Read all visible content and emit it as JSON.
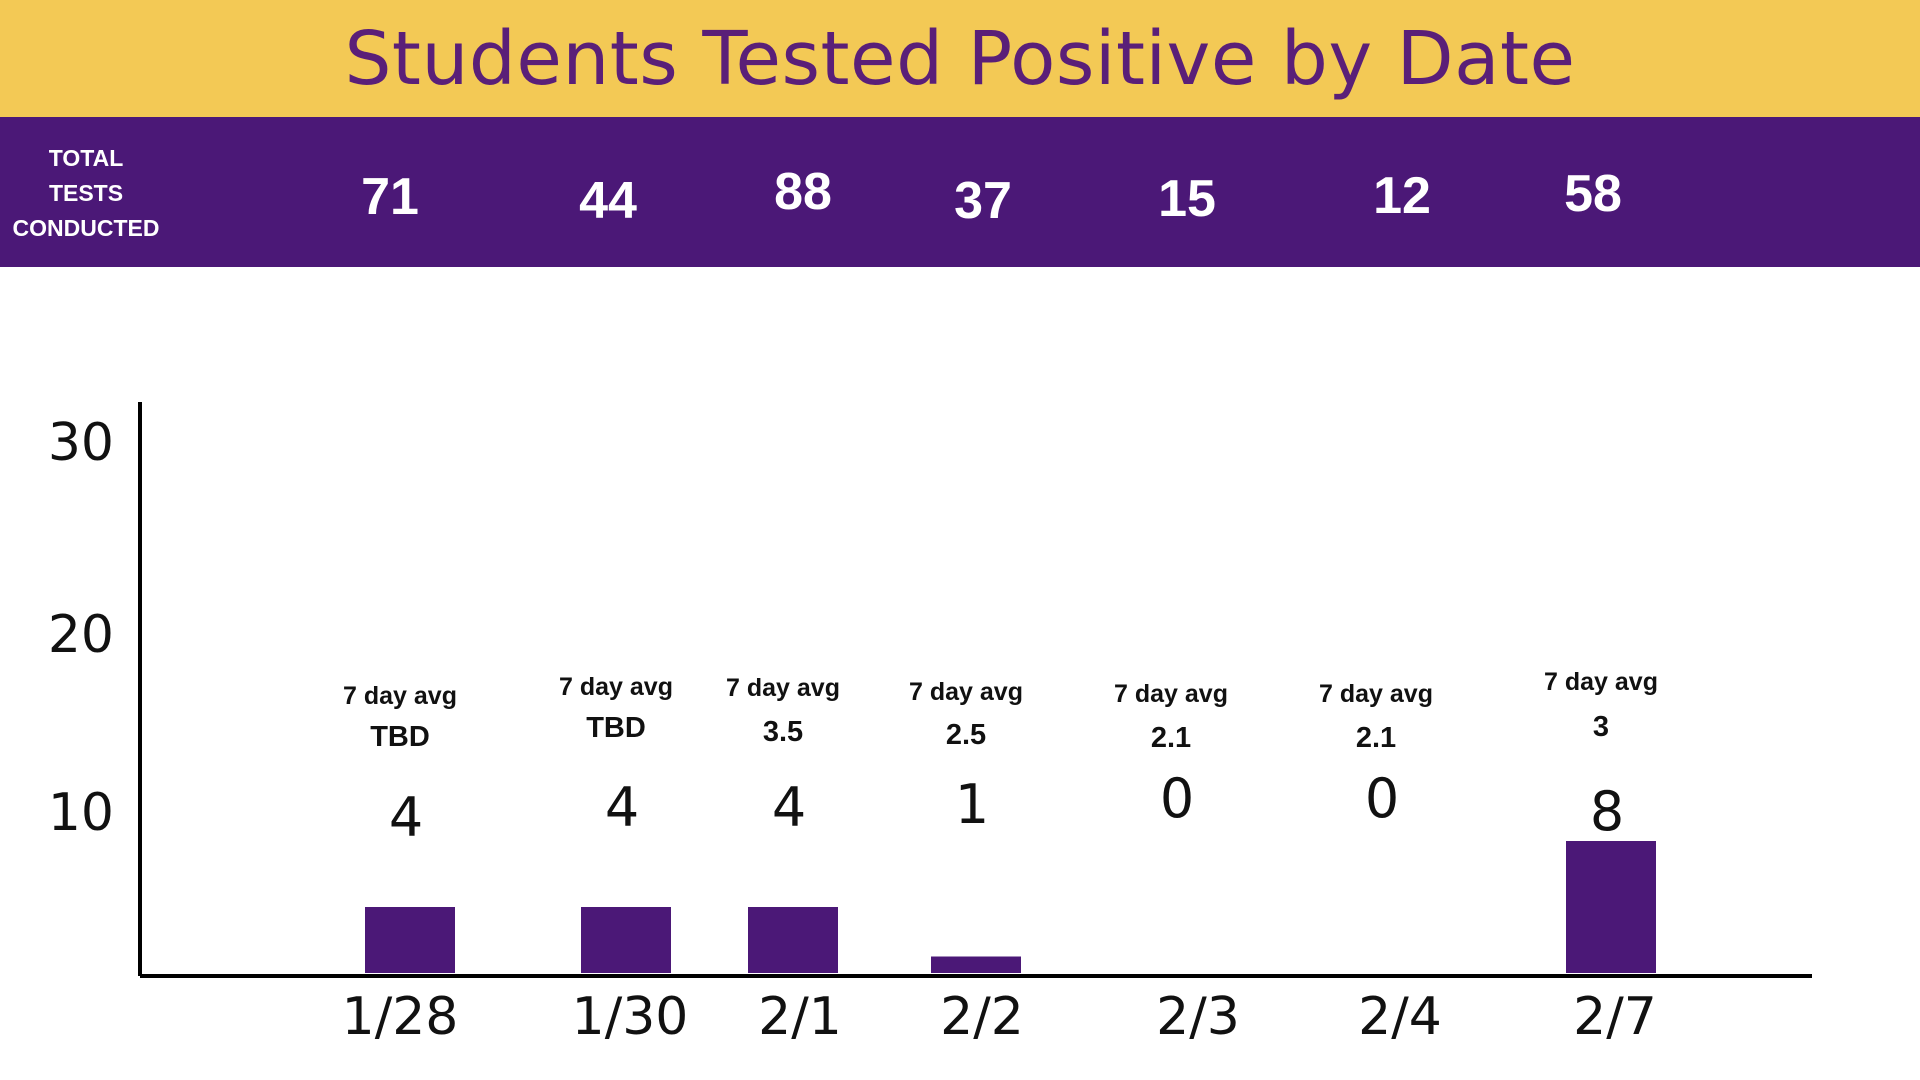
{
  "header": {
    "title": "Students Tested Positive by Date"
  },
  "tests": {
    "label_lines": [
      "TOTAL",
      "TESTS",
      "CONDUCTED"
    ],
    "values": [
      "71",
      "44",
      "88",
      "37",
      "15",
      "12",
      "58"
    ]
  },
  "colors": {
    "title_band": "#f3c955",
    "title_text": "#5a1f78",
    "tests_band": "#4b1877",
    "bar": "#4b1877"
  },
  "chart_data": {
    "type": "bar",
    "title": "Students Tested Positive by Date",
    "xlabel": "",
    "ylabel": "",
    "categories": [
      "1/28",
      "1/30",
      "2/1",
      "2/2",
      "2/3",
      "2/4",
      "2/7"
    ],
    "values": [
      4,
      4,
      4,
      1,
      0,
      0,
      8
    ],
    "value_labels": [
      "4",
      "4",
      "4",
      "1",
      "0",
      "0",
      "8"
    ],
    "avg_caption": "7 day avg",
    "seven_day_avg": [
      "TBD",
      "TBD",
      "3.5",
      "2.5",
      "2.1",
      "2.1",
      "3"
    ],
    "yticks": [
      10,
      20,
      30
    ],
    "grid": false,
    "legend": "none"
  }
}
